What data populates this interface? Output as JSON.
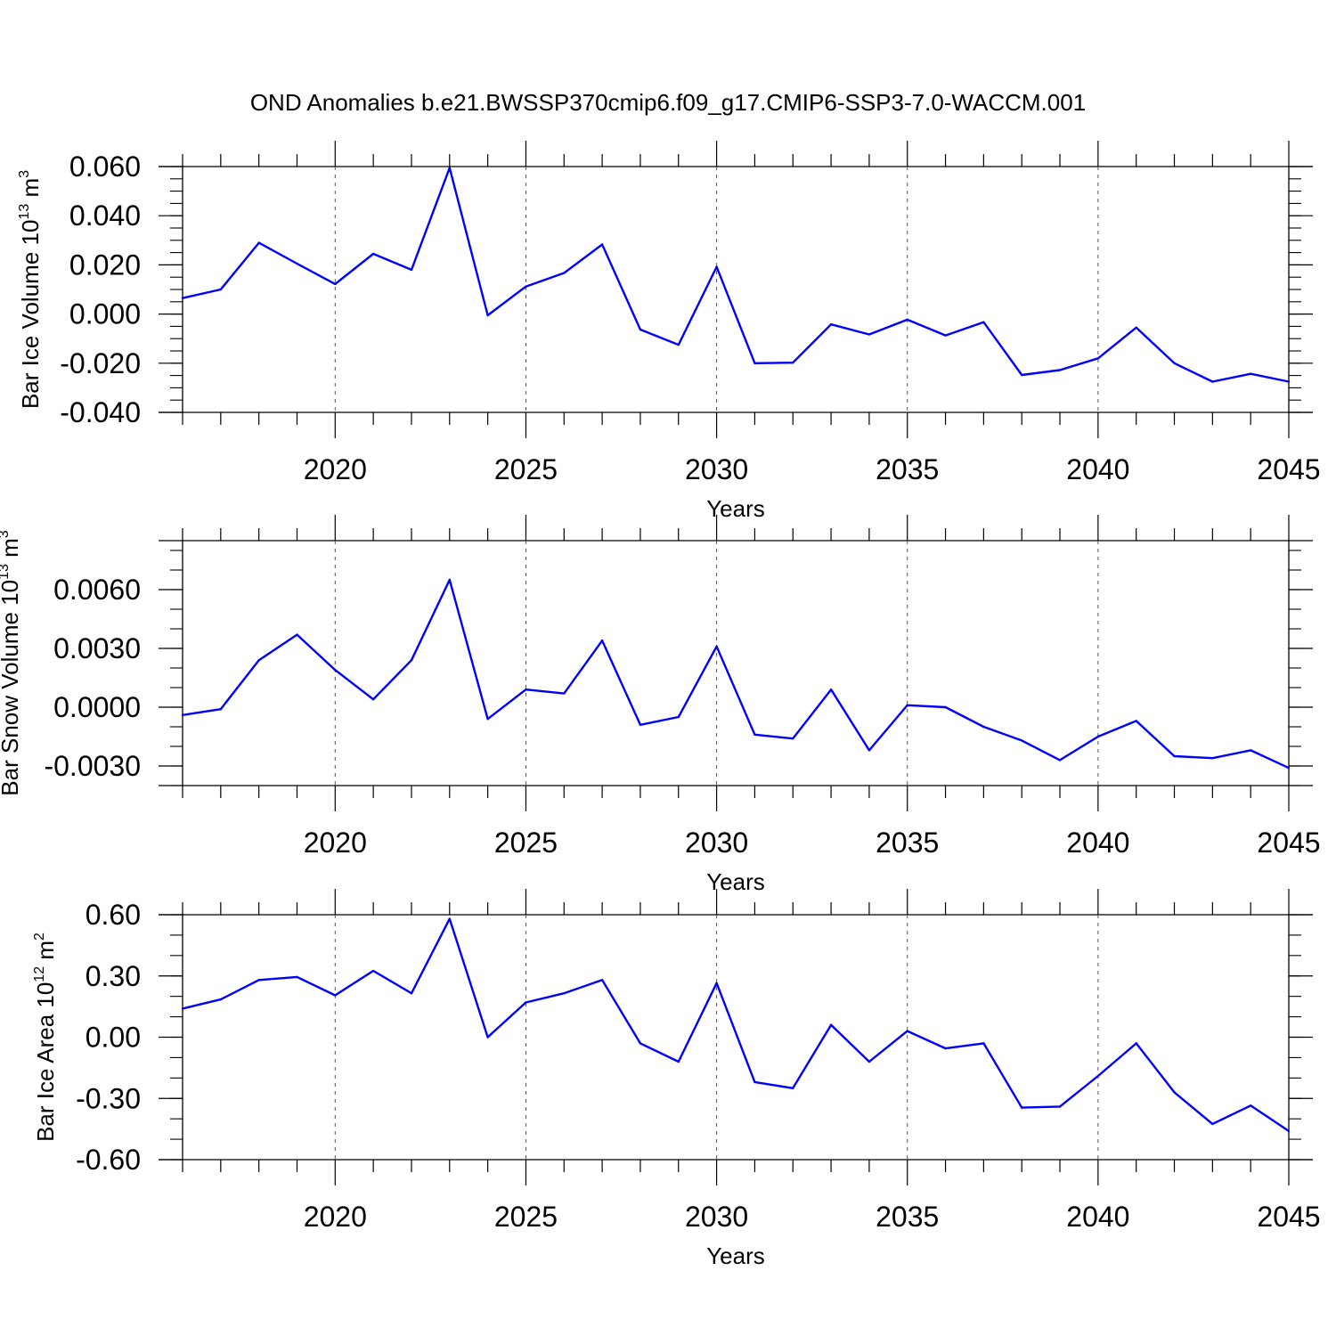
{
  "title": "OND Anomalies b.e21.BWSSP370cmip6.f09_g17.CMIP6-SSP3-7.0-WACCM.001",
  "colors": {
    "line": "#0000ff",
    "axis": "#000000",
    "grid": "#555555"
  },
  "chart_data": [
    {
      "type": "line",
      "ylabel_main": "Bar Ice Volume 10",
      "ylabel_exp": "13",
      "ylabel_unit": " m",
      "ylabel_unit_exp": "3",
      "xlabel": "Years",
      "xlim": [
        2016,
        2045
      ],
      "ylim": [
        -0.04,
        0.06
      ],
      "yticks": [
        -0.04,
        -0.02,
        0.0,
        0.02,
        0.04,
        0.06
      ],
      "ytick_labels": [
        "-0.040",
        "-0.020",
        "0.000",
        "0.020",
        "0.040",
        "0.060"
      ],
      "yminor_step": 0.005,
      "xticks": [
        2020,
        2025,
        2030,
        2035,
        2040,
        2045
      ],
      "xtick_labels": [
        "2020",
        "2025",
        "2030",
        "2035",
        "2040",
        "2045"
      ],
      "x": [
        2016,
        2017,
        2018,
        2019,
        2020,
        2021,
        2022,
        2023,
        2024,
        2025,
        2026,
        2027,
        2028,
        2029,
        2030,
        2031,
        2032,
        2033,
        2034,
        2035,
        2036,
        2037,
        2038,
        2039,
        2040,
        2041,
        2042,
        2043,
        2044,
        2045
      ],
      "series": [
        {
          "values": [
            0.0065,
            0.01,
            0.029,
            0.0205,
            0.0122,
            0.0245,
            0.018,
            0.0595,
            -0.0005,
            0.0112,
            0.0167,
            0.0283,
            -0.0063,
            -0.0125,
            0.0192,
            -0.02,
            -0.0198,
            -0.0042,
            -0.0083,
            -0.0023,
            -0.0087,
            -0.0033,
            -0.0248,
            -0.0228,
            -0.018,
            -0.0055,
            -0.02,
            -0.0275,
            -0.0243,
            -0.0275
          ]
        }
      ]
    },
    {
      "type": "line",
      "ylabel_main": "Bar Snow Volume 10",
      "ylabel_exp": "13",
      "ylabel_unit": " m",
      "ylabel_unit_exp": "3",
      "xlabel": "Years",
      "xlim": [
        2016,
        2045
      ],
      "ylim": [
        -0.004,
        0.0085
      ],
      "yticks": [
        -0.003,
        0.0,
        0.003,
        0.006
      ],
      "ytick_labels": [
        "-0.0030",
        "0.0000",
        "0.0030",
        "0.0060"
      ],
      "yminor_step": 0.001,
      "xticks": [
        2020,
        2025,
        2030,
        2035,
        2040,
        2045
      ],
      "xtick_labels": [
        "2020",
        "2025",
        "2030",
        "2035",
        "2040",
        "2045"
      ],
      "x": [
        2016,
        2017,
        2018,
        2019,
        2020,
        2021,
        2022,
        2023,
        2024,
        2025,
        2026,
        2027,
        2028,
        2029,
        2030,
        2031,
        2032,
        2033,
        2034,
        2035,
        2036,
        2037,
        2038,
        2039,
        2040,
        2041,
        2042,
        2043,
        2044,
        2045
      ],
      "series": [
        {
          "values": [
            -0.0004,
            -0.0001,
            0.0024,
            0.0037,
            0.0019,
            0.0004,
            0.0024,
            0.0065,
            -0.0006,
            0.0009,
            0.0007,
            0.0034,
            -0.0009,
            -0.0005,
            0.0031,
            -0.0014,
            -0.0016,
            0.0009,
            -0.0022,
            0.0001,
            0.0,
            -0.001,
            -0.0017,
            -0.0027,
            -0.0015,
            -0.0007,
            -0.0025,
            -0.0026,
            -0.0022,
            -0.0031
          ]
        }
      ]
    },
    {
      "type": "line",
      "ylabel_main": "Bar Ice Area 10",
      "ylabel_exp": "12",
      "ylabel_unit": " m",
      "ylabel_unit_exp": "2",
      "xlabel": "Years",
      "xlim": [
        2016,
        2045
      ],
      "ylim": [
        -0.6,
        0.6
      ],
      "yticks": [
        -0.6,
        -0.3,
        0.0,
        0.3,
        0.6
      ],
      "ytick_labels": [
        "-0.60",
        "-0.30",
        "0.00",
        "0.30",
        "0.60"
      ],
      "yminor_step": 0.1,
      "xticks": [
        2020,
        2025,
        2030,
        2035,
        2040,
        2045
      ],
      "xtick_labels": [
        "2020",
        "2025",
        "2030",
        "2035",
        "2040",
        "2045"
      ],
      "x": [
        2016,
        2017,
        2018,
        2019,
        2020,
        2021,
        2022,
        2023,
        2024,
        2025,
        2026,
        2027,
        2028,
        2029,
        2030,
        2031,
        2032,
        2033,
        2034,
        2035,
        2036,
        2037,
        2038,
        2039,
        2040,
        2041,
        2042,
        2043,
        2044,
        2045
      ],
      "series": [
        {
          "values": [
            0.14,
            0.185,
            0.28,
            0.295,
            0.205,
            0.325,
            0.215,
            0.58,
            0.0,
            0.17,
            0.215,
            0.28,
            -0.03,
            -0.12,
            0.265,
            -0.22,
            -0.25,
            0.06,
            -0.12,
            0.03,
            -0.055,
            -0.03,
            -0.345,
            -0.34,
            -0.19,
            -0.03,
            -0.27,
            -0.425,
            -0.335,
            -0.46
          ]
        }
      ]
    }
  ]
}
